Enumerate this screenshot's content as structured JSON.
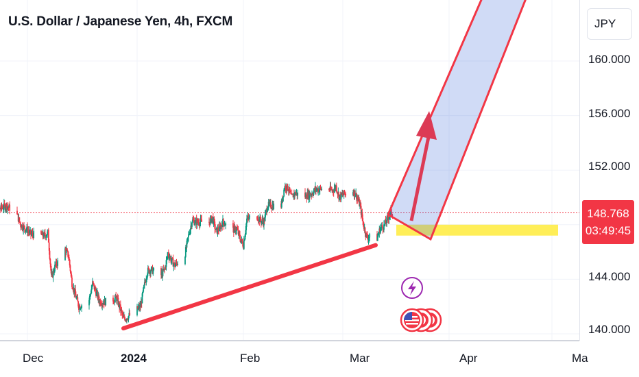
{
  "header": {
    "title": "U.S. Dollar / Japanese Yen, 4h, FXCM"
  },
  "price_axis": {
    "currency": "JPY"
  },
  "last_price": {
    "value": "148.768",
    "countdown": "03:49:45",
    "color": "#f23645"
  },
  "chart_data": {
    "type": "candlestick",
    "title": "U.S. Dollar / Japanese Yen, 4h, FXCM",
    "y_ticks": [
      "160.000",
      "156.000",
      "152.000",
      "144.000",
      "140.000"
    ],
    "x_ticks": [
      "Dec",
      "2024",
      "Feb",
      "Mar",
      "Apr",
      "Ma"
    ],
    "ylim": [
      139.5,
      162
    ],
    "up_color": "#089981",
    "down_color": "#f23645",
    "last_price_line": 148.768,
    "price_path": [
      [
        "2023-11-17",
        149.6
      ],
      [
        "2023-11-20",
        148.4
      ],
      [
        "2023-11-22",
        149.1
      ],
      [
        "2023-11-24",
        149.3
      ],
      [
        "2023-11-27",
        148.6
      ],
      [
        "2023-11-28",
        147.9
      ],
      [
        "2023-11-30",
        147.5
      ],
      [
        "2023-12-01",
        147.2
      ],
      [
        "2023-12-05",
        147.1
      ],
      [
        "2023-12-06",
        147.3
      ],
      [
        "2023-12-07",
        144.0
      ],
      [
        "2023-12-08",
        144.8
      ],
      [
        "2023-12-11",
        146.1
      ],
      [
        "2023-12-12",
        145.6
      ],
      [
        "2023-12-13",
        143.6
      ],
      [
        "2023-12-15",
        141.9
      ],
      [
        "2023-12-18",
        142.4
      ],
      [
        "2023-12-19",
        143.6
      ],
      [
        "2023-12-21",
        142.3
      ],
      [
        "2023-12-22",
        142.2
      ],
      [
        "2023-12-26",
        142.5
      ],
      [
        "2023-12-27",
        141.8
      ],
      [
        "2023-12-28",
        141.0
      ],
      [
        "2023-12-29",
        141.1
      ],
      [
        "2024-01-02",
        141.9
      ],
      [
        "2024-01-03",
        143.3
      ],
      [
        "2024-01-04",
        144.5
      ],
      [
        "2024-01-05",
        144.6
      ],
      [
        "2024-01-08",
        144.2
      ],
      [
        "2024-01-09",
        144.6
      ],
      [
        "2024-01-10",
        145.8
      ],
      [
        "2024-01-11",
        145.3
      ],
      [
        "2024-01-12",
        144.9
      ],
      [
        "2024-01-15",
        145.8
      ],
      [
        "2024-01-16",
        147.1
      ],
      [
        "2024-01-17",
        148.2
      ],
      [
        "2024-01-18",
        148.1
      ],
      [
        "2024-01-19",
        148.1
      ],
      [
        "2024-01-22",
        148.1
      ],
      [
        "2024-01-23",
        148.4
      ],
      [
        "2024-01-24",
        147.4
      ],
      [
        "2024-01-25",
        147.6
      ],
      [
        "2024-01-26",
        148.1
      ],
      [
        "2024-01-29",
        147.5
      ],
      [
        "2024-01-30",
        147.6
      ],
      [
        "2024-01-31",
        146.9
      ],
      [
        "2024-02-01",
        146.4
      ],
      [
        "2024-02-02",
        148.3
      ],
      [
        "2024-02-05",
        148.5
      ],
      [
        "2024-02-06",
        148.2
      ],
      [
        "2024-02-07",
        148.1
      ],
      [
        "2024-02-08",
        149.3
      ],
      [
        "2024-02-09",
        149.3
      ],
      [
        "2024-02-12",
        149.3
      ],
      [
        "2024-02-13",
        150.7
      ],
      [
        "2024-02-14",
        150.6
      ],
      [
        "2024-02-15",
        149.9
      ],
      [
        "2024-02-16",
        150.2
      ],
      [
        "2024-02-19",
        150.0
      ],
      [
        "2024-02-20",
        150.1
      ],
      [
        "2024-02-21",
        150.2
      ],
      [
        "2024-02-22",
        150.5
      ],
      [
        "2024-02-23",
        150.5
      ],
      [
        "2024-02-26",
        150.5
      ],
      [
        "2024-02-27",
        150.4
      ],
      [
        "2024-02-28",
        150.7
      ],
      [
        "2024-02-29",
        149.9
      ],
      [
        "2024-03-01",
        150.1
      ],
      [
        "2024-03-04",
        150.4
      ],
      [
        "2024-03-05",
        150.0
      ],
      [
        "2024-03-06",
        149.3
      ],
      [
        "2024-03-07",
        147.9
      ],
      [
        "2024-03-08",
        147.0
      ],
      [
        "2024-03-11",
        146.9
      ],
      [
        "2024-03-12",
        147.7
      ],
      [
        "2024-03-13",
        147.8
      ],
      [
        "2024-03-14",
        148.3
      ],
      [
        "2024-03-15",
        148.8
      ]
    ],
    "drawings": {
      "trendline": [
        [
          "2023-12-28",
          140.3
        ],
        [
          "2024-03-08",
          146.3
        ]
      ],
      "channel": [
        [
          150.7,
          "start"
        ],
        [
          162.5,
          "top"
        ]
      ],
      "support_zone": [
        147.1,
        147.9
      ],
      "arrow": [
        148.4,
        156.2
      ]
    }
  },
  "events": [
    {
      "name": "lightning-icon",
      "color": "#9c27b0"
    },
    {
      "name": "us-flag-icon"
    }
  ]
}
